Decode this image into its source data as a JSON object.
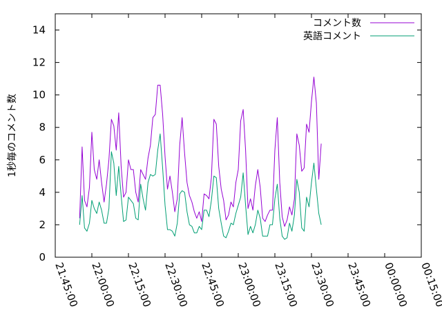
{
  "chart_data": {
    "type": "line",
    "title": "",
    "xlabel": "",
    "ylabel": "1秒毎のコメント数",
    "xlim": [
      "21:45:00",
      "00:15:00"
    ],
    "ylim": [
      0,
      15
    ],
    "x_ticks": [
      "21:45:00",
      "22:00:00",
      "22:15:00",
      "22:30:00",
      "22:45:00",
      "23:00:00",
      "23:15:00",
      "23:30:00",
      "23:45:00",
      "00:00:00",
      "00:15:00"
    ],
    "y_ticks": [
      "0",
      "2",
      "4",
      "6",
      "8",
      "10",
      "12",
      "14"
    ],
    "legend_position": "top-right",
    "grid": false,
    "x_start": "21:55:00",
    "x_step": "00:01:00",
    "series": [
      {
        "name": "コメント数",
        "color": "#9400d3",
        "values": [
          2.4,
          6.8,
          3.5,
          3.1,
          4.3,
          7.7,
          5.4,
          4.8,
          6.0,
          4.6,
          3.4,
          4.5,
          6.0,
          8.5,
          8.1,
          6.6,
          8.9,
          5.6,
          3.7,
          4.0,
          6.0,
          5.4,
          5.4,
          4.0,
          3.4,
          5.4,
          5.1,
          4.8,
          6.1,
          6.9,
          8.6,
          8.8,
          10.6,
          10.6,
          8.8,
          6.2,
          4.2,
          5.0,
          4.0,
          2.8,
          3.6,
          6.9,
          8.6,
          6.4,
          4.6,
          3.8,
          3.4,
          2.8,
          2.4,
          2.8,
          2.2,
          3.9,
          3.8,
          3.6,
          4.9,
          8.5,
          8.2,
          5.6,
          4.2,
          3.5,
          2.3,
          2.6,
          3.4,
          3.1,
          4.6,
          5.4,
          8.4,
          9.1,
          6.6,
          3.0,
          3.6,
          2.9,
          4.4,
          5.4,
          4.3,
          2.4,
          2.2,
          2.6,
          2.9,
          2.9,
          6.6,
          8.6,
          4.6,
          2.5,
          1.9,
          2.3,
          3.1,
          2.6,
          3.6,
          7.6,
          6.9,
          5.3,
          5.5,
          8.2,
          7.7,
          9.6,
          11.1,
          9.5,
          4.8,
          7.0
        ]
      },
      {
        "name": "英語コメント",
        "color": "#009e73",
        "values": [
          2.0,
          3.8,
          1.8,
          1.6,
          2.1,
          3.5,
          3.0,
          2.7,
          3.4,
          2.9,
          2.1,
          2.1,
          3.0,
          6.5,
          5.8,
          3.8,
          5.6,
          3.8,
          2.2,
          2.3,
          3.7,
          3.5,
          3.3,
          2.4,
          2.3,
          4.5,
          3.6,
          2.9,
          4.6,
          5.1,
          5.0,
          5.1,
          6.6,
          7.6,
          5.5,
          3.2,
          1.7,
          1.7,
          1.6,
          1.3,
          2.1,
          3.9,
          4.1,
          4.0,
          2.8,
          2.0,
          1.9,
          1.5,
          1.5,
          1.9,
          1.7,
          2.9,
          2.9,
          2.5,
          3.5,
          5.0,
          4.9,
          3.0,
          2.1,
          1.3,
          1.2,
          1.6,
          2.1,
          2.0,
          2.7,
          3.2,
          3.7,
          5.2,
          3.2,
          1.4,
          1.9,
          1.5,
          2.0,
          2.9,
          2.4,
          1.3,
          1.3,
          1.3,
          2.0,
          2.0,
          3.6,
          4.5,
          2.4,
          1.3,
          1.1,
          1.2,
          2.1,
          1.6,
          2.6,
          4.8,
          4.0,
          1.8,
          1.6,
          3.7,
          3.1,
          4.6,
          5.8,
          4.2,
          2.7,
          2.0
        ]
      }
    ]
  }
}
